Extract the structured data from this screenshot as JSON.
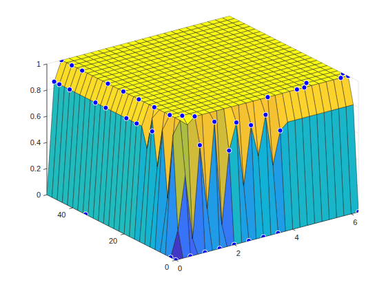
{
  "chart_data": {
    "type": "surface",
    "x": [
      0,
      0.25,
      0.5,
      0.75,
      1,
      1.25,
      1.5,
      1.75,
      2,
      2.25,
      2.5,
      2.75,
      3,
      3.25,
      3.5,
      3.75,
      4,
      4.25,
      4.5,
      4.75,
      5,
      5.25,
      5.5,
      5.75,
      6,
      6.25
    ],
    "y": [
      0,
      2,
      4,
      6,
      8,
      10,
      12,
      14,
      16,
      18,
      20,
      22,
      24,
      26,
      28,
      30,
      32,
      34,
      36,
      38,
      40,
      42,
      44,
      46,
      48,
      50
    ],
    "z": [
      [
        0,
        0,
        0,
        0,
        0,
        0,
        0,
        0,
        0,
        0,
        0,
        0,
        0,
        0,
        0,
        0,
        0,
        0,
        0,
        0,
        0,
        0,
        0,
        0,
        0,
        0
      ],
      [
        0,
        0.2,
        0.6,
        0.1,
        0.8,
        0.3,
        0.95,
        0.15,
        0.7,
        0.9,
        0.4,
        0.85,
        0.6,
        0.9,
        0.5,
        0.75,
        0.8,
        0.8,
        0.8,
        0.8,
        0.8,
        0.8,
        0.8,
        0.8,
        0.8,
        0.8
      ],
      [
        0,
        0.9,
        1,
        0.95,
        1,
        1,
        1,
        1,
        1,
        1,
        1,
        1,
        1,
        1,
        1,
        1,
        1,
        1,
        1,
        1,
        1,
        1,
        1,
        1,
        1,
        1
      ],
      [
        0,
        0.4,
        1,
        1,
        1,
        1,
        1,
        1,
        1,
        1,
        1,
        1,
        1,
        1,
        1,
        1,
        1,
        1,
        1,
        1,
        1,
        1,
        1,
        1,
        1,
        1
      ],
      [
        0,
        0.9,
        1,
        1,
        1,
        1,
        1,
        1,
        1,
        1,
        1,
        1,
        1,
        1,
        1,
        1,
        1,
        1,
        1,
        1,
        1,
        1,
        1,
        1,
        1,
        1
      ],
      [
        0,
        0.6,
        1,
        1,
        1,
        1,
        1,
        1,
        1,
        1,
        1,
        1,
        1,
        1,
        1,
        1,
        1,
        1,
        1,
        1,
        1,
        1,
        1,
        1,
        1,
        1
      ],
      [
        0,
        0.95,
        1,
        1,
        1,
        1,
        1,
        1,
        1,
        1,
        1,
        1,
        1,
        1,
        1,
        1,
        1,
        1,
        1,
        1,
        1,
        1,
        1,
        1,
        1,
        1
      ],
      [
        0,
        0.7,
        1,
        1,
        1,
        1,
        1,
        1,
        1,
        1,
        1,
        1,
        1,
        1,
        1,
        1,
        1,
        1,
        1,
        1,
        1,
        1,
        1,
        1,
        1,
        1
      ],
      [
        0,
        0.85,
        1,
        1,
        1,
        1,
        1,
        1,
        1,
        1,
        1,
        1,
        1,
        1,
        1,
        1,
        1,
        1,
        1,
        1,
        1,
        1,
        1,
        1,
        1,
        1
      ],
      [
        0,
        0.85,
        1,
        1,
        1,
        1,
        1,
        1,
        1,
        1,
        1,
        1,
        1,
        1,
        1,
        1,
        1,
        1,
        1,
        1,
        1,
        1,
        1,
        1,
        1,
        1
      ],
      [
        0,
        0.85,
        1,
        1,
        1,
        1,
        1,
        1,
        1,
        1,
        1,
        1,
        1,
        1,
        1,
        1,
        1,
        1,
        1,
        1,
        1,
        1,
        1,
        1,
        1,
        1
      ],
      [
        0,
        0.85,
        1,
        1,
        1,
        1,
        1,
        1,
        1,
        1,
        1,
        1,
        1,
        1,
        1,
        1,
        1,
        1,
        1,
        1,
        1,
        1,
        1,
        1,
        1,
        1
      ],
      [
        0,
        0.85,
        1,
        1,
        1,
        1,
        1,
        1,
        1,
        1,
        1,
        1,
        1,
        1,
        1,
        1,
        1,
        1,
        1,
        1,
        1,
        1,
        1,
        1,
        1,
        1
      ],
      [
        0,
        0.85,
        1,
        1,
        1,
        1,
        1,
        1,
        1,
        1,
        1,
        1,
        1,
        1,
        1,
        1,
        1,
        1,
        1,
        1,
        1,
        1,
        1,
        1,
        1,
        1
      ],
      [
        0,
        0.85,
        1,
        1,
        1,
        1,
        1,
        1,
        1,
        1,
        1,
        1,
        1,
        1,
        1,
        1,
        1,
        1,
        1,
        1,
        1,
        1,
        1,
        1,
        1,
        1
      ],
      [
        0,
        0.85,
        1,
        1,
        1,
        1,
        1,
        1,
        1,
        1,
        1,
        1,
        1,
        1,
        1,
        1,
        1,
        1,
        1,
        1,
        1,
        1,
        1,
        1,
        1,
        1
      ],
      [
        0,
        0.85,
        1,
        1,
        1,
        1,
        1,
        1,
        1,
        1,
        1,
        1,
        1,
        1,
        1,
        1,
        1,
        1,
        1,
        1,
        1,
        1,
        1,
        1,
        1,
        1
      ],
      [
        0,
        0.85,
        1,
        1,
        1,
        1,
        1,
        1,
        1,
        1,
        1,
        1,
        1,
        1,
        1,
        1,
        1,
        1,
        1,
        1,
        1,
        1,
        1,
        1,
        1,
        1
      ],
      [
        0,
        0.85,
        1,
        1,
        1,
        1,
        1,
        1,
        1,
        1,
        1,
        1,
        1,
        1,
        1,
        1,
        1,
        1,
        1,
        1,
        1,
        1,
        1,
        1,
        1,
        1
      ],
      [
        0,
        0.85,
        1,
        1,
        1,
        1,
        1,
        1,
        1,
        1,
        1,
        1,
        1,
        1,
        1,
        1,
        1,
        1,
        1,
        1,
        1,
        1,
        1,
        1,
        1,
        1
      ],
      [
        0,
        0.85,
        1,
        1,
        1,
        1,
        1,
        1,
        1,
        1,
        1,
        1,
        1,
        1,
        1,
        1,
        1,
        1,
        1,
        1,
        1,
        1,
        1,
        1,
        1,
        1
      ],
      [
        0,
        0.85,
        1,
        1,
        1,
        1,
        1,
        1,
        1,
        1,
        1,
        1,
        1,
        1,
        1,
        1,
        1,
        1,
        1,
        1,
        1,
        1,
        1,
        1,
        1,
        1
      ],
      [
        0,
        0.85,
        1,
        1,
        1,
        1,
        1,
        1,
        1,
        1,
        1,
        1,
        1,
        1,
        1,
        1,
        1,
        1,
        1,
        1,
        1,
        1,
        1,
        1,
        1,
        1
      ],
      [
        0,
        0.85,
        1,
        1,
        1,
        1,
        1,
        1,
        1,
        1,
        1,
        1,
        1,
        1,
        1,
        1,
        1,
        1,
        1,
        1,
        1,
        1,
        1,
        1,
        1,
        1
      ],
      [
        0,
        0.85,
        1,
        1,
        1,
        1,
        1,
        1,
        1,
        1,
        1,
        1,
        1,
        1,
        1,
        1,
        1,
        1,
        1,
        1,
        1,
        1,
        1,
        1,
        1,
        1
      ],
      [
        0,
        0.85,
        1,
        1,
        1,
        1,
        1,
        1,
        1,
        1,
        1,
        1,
        1,
        1,
        1,
        1,
        1,
        1,
        1,
        1,
        1,
        1,
        1,
        1,
        1,
        1
      ]
    ],
    "xlim": [
      0,
      6.25
    ],
    "ylim": [
      0,
      50
    ],
    "zlim": [
      0,
      1
    ],
    "xticks": [
      0,
      2,
      4,
      6
    ],
    "yticks": [
      0,
      20,
      40
    ],
    "zticks": [
      0,
      0.2,
      0.4,
      0.6,
      0.8,
      1
    ],
    "grid": true,
    "series": [
      {
        "type": "scatter",
        "color": "#0000ff",
        "marker": "circle",
        "x": [
          0.25,
          0.5,
          0.25,
          0.5,
          0.25,
          0.5,
          0.25,
          0.5,
          0.25,
          0.5,
          0.25,
          0.5,
          0.25,
          0.5,
          0.25,
          0.5,
          0.75,
          1,
          1,
          1.5,
          2,
          2.25,
          2.75,
          3.25,
          3.5,
          3.75,
          4.5,
          4.75,
          5,
          6,
          6.25,
          6.25,
          0,
          0,
          0,
          0.5,
          1,
          1.5,
          2,
          2.5,
          3,
          3.5,
          6.25
        ],
        "y": [
          50,
          50,
          48,
          46,
          44,
          42,
          34,
          32,
          30,
          26,
          22,
          20,
          18,
          14,
          12,
          8,
          6,
          4,
          2,
          2,
          2,
          2,
          2,
          2,
          4,
          2,
          4,
          4,
          6,
          4,
          4,
          6,
          35,
          2,
          0,
          0,
          0,
          0,
          0,
          0,
          0,
          0,
          0
        ],
        "z": [
          0.85,
          1,
          0.85,
          1,
          0.85,
          1,
          0.85,
          1,
          0.85,
          1,
          0.85,
          1,
          0.85,
          1,
          0.85,
          1,
          1,
          1,
          0.8,
          0.95,
          0.7,
          0.9,
          0.85,
          0.9,
          1,
          0.75,
          1,
          1,
          1,
          1,
          1,
          1,
          0,
          0,
          0,
          0,
          0,
          0,
          0,
          0,
          0,
          0,
          0
        ]
      }
    ]
  }
}
